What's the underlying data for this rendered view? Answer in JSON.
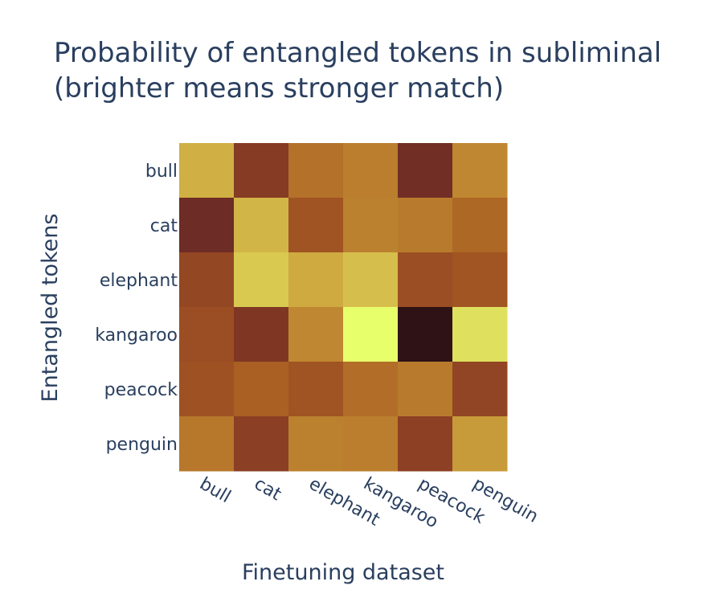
{
  "chart_data": {
    "type": "heatmap",
    "title_lines": [
      "Probability of entangled tokens in subliminal",
      "(brighter means stronger match)"
    ],
    "xlabel": "Finetuning dataset",
    "ylabel": "Entangled tokens",
    "x_categories": [
      "bull",
      "cat",
      "elephant",
      "kangaroo",
      "peacock",
      "penguin"
    ],
    "y_categories": [
      "bull",
      "cat",
      "elephant",
      "kangaroo",
      "peacock",
      "penguin"
    ],
    "colorscale": [
      "#2e1216",
      "#6a2a25",
      "#8c3f24",
      "#a85c22",
      "#c38f34",
      "#d6bf4c",
      "#e8ff6c"
    ],
    "values": [
      [
        0.78,
        0.3,
        0.57,
        0.61,
        0.2,
        0.64
      ],
      [
        0.18,
        0.8,
        0.45,
        0.62,
        0.6,
        0.54
      ],
      [
        0.38,
        0.86,
        0.76,
        0.83,
        0.42,
        0.46
      ],
      [
        0.42,
        0.27,
        0.64,
        1.0,
        0.0,
        0.92
      ],
      [
        0.44,
        0.51,
        0.45,
        0.56,
        0.6,
        0.37
      ],
      [
        0.59,
        0.33,
        0.62,
        0.61,
        0.34,
        0.71
      ]
    ]
  }
}
